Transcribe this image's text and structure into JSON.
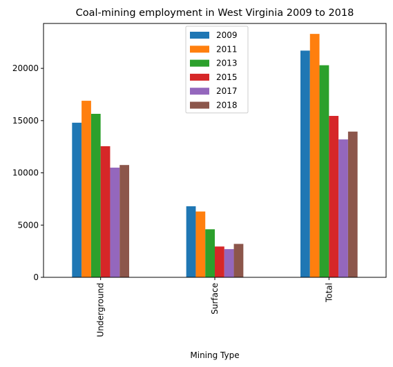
{
  "chart_data": {
    "type": "bar",
    "title": "Coal-mining employment in West Virginia 2009 to 2018",
    "xlabel": "Mining Type",
    "ylabel": "",
    "categories": [
      "Underground",
      "Surface",
      "Total"
    ],
    "ylim": [
      0,
      24300
    ],
    "yticks": [
      0,
      5000,
      10000,
      15000,
      20000
    ],
    "grid": false,
    "legend_position": "top-center",
    "series": [
      {
        "name": "2009",
        "color": "#1f77b4",
        "values": [
          14800,
          6800,
          21700
        ]
      },
      {
        "name": "2011",
        "color": "#ff7f0e",
        "values": [
          16900,
          6300,
          23300
        ]
      },
      {
        "name": "2013",
        "color": "#2ca02c",
        "values": [
          15650,
          4600,
          20300
        ]
      },
      {
        "name": "2015",
        "color": "#d62728",
        "values": [
          12550,
          2950,
          15450
        ]
      },
      {
        "name": "2017",
        "color": "#9467bd",
        "values": [
          10500,
          2700,
          13200
        ]
      },
      {
        "name": "2018",
        "color": "#8c564b",
        "values": [
          10750,
          3200,
          13950
        ]
      }
    ]
  }
}
